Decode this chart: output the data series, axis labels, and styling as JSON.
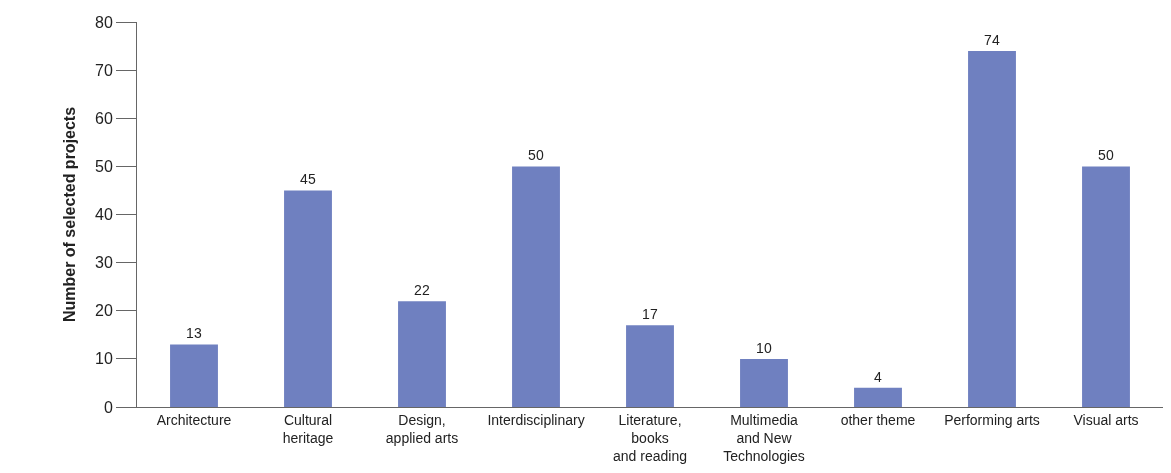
{
  "chart_data": {
    "type": "bar",
    "ylabel": "Number of selected projects",
    "categories": [
      "Architecture",
      "Cultural\nheritage",
      "Design,\napplied arts",
      "Interdisciplinary",
      "Literature,\nbooks\nand reading",
      "Multimedia\nand New\nTechnologies",
      "other theme",
      "Performing arts",
      "Visual arts"
    ],
    "values": [
      13,
      45,
      22,
      50,
      17,
      10,
      4,
      74,
      50
    ],
    "color": "#6f80c0",
    "ylim": [
      0,
      80
    ],
    "yticks": [
      0,
      10,
      20,
      30,
      40,
      50,
      60,
      70,
      80
    ],
    "data_labels": true
  }
}
